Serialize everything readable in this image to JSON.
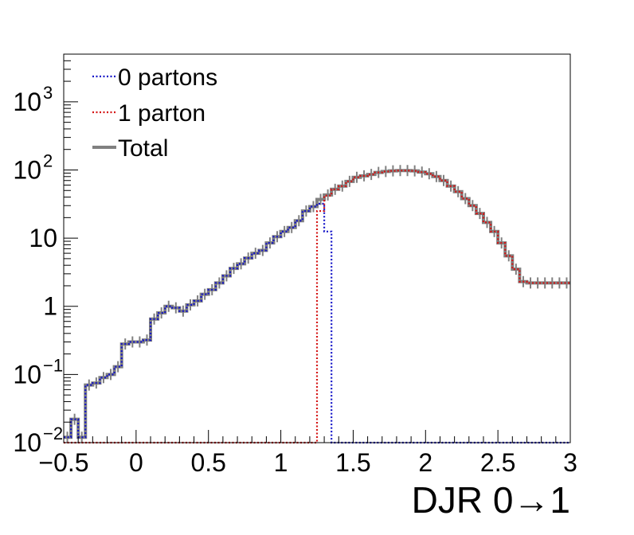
{
  "chart_data": {
    "type": "line",
    "title": "",
    "xlabel": "DJR 0→1",
    "ylabel": "",
    "xlim": [
      -0.5,
      3.0
    ],
    "ylim": [
      0.01,
      5000
    ],
    "yscale": "log",
    "grid": false,
    "legend": "top-left",
    "x_ticks": [
      "−0.5",
      "0",
      "0.5",
      "1",
      "1.5",
      "2",
      "2.5",
      "3"
    ],
    "x_tick_values": [
      -0.5,
      0,
      0.5,
      1,
      1.5,
      2,
      2.5,
      3
    ],
    "y_ticks": [
      {
        "value": 0.01,
        "base": "10",
        "exp": "−2"
      },
      {
        "value": 0.1,
        "base": "10",
        "exp": "−1"
      },
      {
        "value": 1,
        "base": "1",
        "exp": ""
      },
      {
        "value": 10,
        "base": "10",
        "exp": ""
      },
      {
        "value": 100,
        "base": "10",
        "exp": "2"
      },
      {
        "value": 1000,
        "base": "10",
        "exp": "3"
      }
    ],
    "bin_edges": [
      -0.5,
      -0.45,
      -0.4,
      -0.35,
      -0.3,
      -0.25,
      -0.2,
      -0.15,
      -0.1,
      -0.05,
      0.0,
      0.05,
      0.1,
      0.15,
      0.2,
      0.25,
      0.3,
      0.35,
      0.4,
      0.45,
      0.5,
      0.55,
      0.6,
      0.65,
      0.7,
      0.75,
      0.8,
      0.85,
      0.9,
      0.95,
      1.0,
      1.05,
      1.1,
      1.15,
      1.2,
      1.25,
      1.3,
      1.35,
      1.4,
      1.45,
      1.5,
      1.55,
      1.6,
      1.65,
      1.7,
      1.75,
      1.8,
      1.85,
      1.9,
      1.95,
      2.0,
      2.05,
      2.1,
      2.15,
      2.2,
      2.25,
      2.3,
      2.35,
      2.4,
      2.45,
      2.5,
      2.55,
      2.6,
      2.65,
      2.7,
      2.75,
      2.8,
      2.85,
      2.9,
      2.95,
      3.0
    ],
    "series": [
      {
        "name": "0 partons",
        "color": "#1414c8",
        "style": "dotted",
        "values": [
          0.012,
          0.022,
          0.012,
          0.07,
          0.075,
          0.09,
          0.1,
          0.13,
          0.28,
          0.3,
          0.3,
          0.32,
          0.65,
          0.8,
          1.0,
          0.95,
          0.85,
          1.05,
          1.2,
          1.5,
          1.75,
          2.2,
          2.8,
          3.6,
          4.2,
          5.1,
          6.0,
          6.6,
          8.5,
          10.5,
          12.5,
          14.3,
          18.0,
          25.0,
          29.0,
          32.0,
          12.5,
          0.01,
          0.01,
          0.01,
          0.01,
          0.01,
          0.01,
          0.01,
          0.01,
          0.01,
          0.01,
          0.01,
          0.01,
          0.01,
          0.01,
          0.01,
          0.01,
          0.01,
          0.01,
          0.01,
          0.01,
          0.01,
          0.01,
          0.01,
          0.01,
          0.01,
          0.01,
          0.01,
          0.01,
          0.01,
          0.01,
          0.01,
          0.01,
          0.01
        ]
      },
      {
        "name": "1 parton",
        "color": "#d41414",
        "style": "dotted",
        "values": [
          0.01,
          0.01,
          0.01,
          0.01,
          0.01,
          0.01,
          0.01,
          0.01,
          0.01,
          0.01,
          0.01,
          0.01,
          0.01,
          0.01,
          0.01,
          0.01,
          0.01,
          0.01,
          0.01,
          0.01,
          0.01,
          0.01,
          0.01,
          0.01,
          0.01,
          0.01,
          0.01,
          0.01,
          0.01,
          0.01,
          0.01,
          0.01,
          0.01,
          0.01,
          0.01,
          25.0,
          42.0,
          52.0,
          58.0,
          68.0,
          78.0,
          82.0,
          86.0,
          92.0,
          95.0,
          97.0,
          98.0,
          98.0,
          97.0,
          93.0,
          88.0,
          80.0,
          70.0,
          58.0,
          48.0,
          38.0,
          30.0,
          23.0,
          17.0,
          12.5,
          8.5,
          5.5,
          3.5,
          2.3,
          2.2,
          2.2,
          2.2,
          2.2,
          2.2,
          2.2
        ]
      },
      {
        "name": "Total",
        "color": "#808080",
        "style": "solid",
        "values": [
          0.012,
          0.022,
          0.012,
          0.07,
          0.075,
          0.09,
          0.1,
          0.13,
          0.28,
          0.3,
          0.3,
          0.32,
          0.65,
          0.8,
          1.0,
          0.95,
          0.85,
          1.05,
          1.2,
          1.5,
          1.75,
          2.2,
          2.8,
          3.6,
          4.2,
          5.1,
          6.0,
          6.6,
          8.5,
          10.5,
          12.5,
          14.3,
          18.0,
          25.0,
          29.0,
          37.0,
          43.0,
          52.0,
          58.0,
          68.0,
          78.0,
          82.0,
          86.0,
          92.0,
          95.0,
          97.0,
          98.0,
          98.0,
          97.0,
          93.0,
          88.0,
          80.0,
          70.0,
          58.0,
          48.0,
          38.0,
          30.0,
          23.0,
          17.0,
          12.5,
          8.5,
          5.5,
          3.5,
          2.3,
          2.2,
          2.2,
          2.2,
          2.2,
          2.2,
          2.2
        ]
      }
    ]
  }
}
